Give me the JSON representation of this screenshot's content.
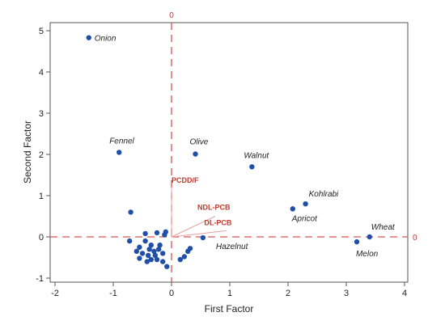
{
  "chart_data": {
    "type": "scatter",
    "title": "",
    "xlabel": "First Factor",
    "ylabel": "Second Factor",
    "xlim": [
      -2.1,
      4.1
    ],
    "ylim": [
      -1.1,
      5.2
    ],
    "xticks": [
      "-2",
      "-1",
      "0",
      "1",
      "2",
      "3",
      "4"
    ],
    "yticks": [
      "-1",
      "0",
      "1",
      "2",
      "3",
      "4",
      "5"
    ],
    "reference_line_label": "0",
    "grid": false,
    "colors": {
      "points": "#1f4fa8",
      "reference": "#d9534f",
      "vectors": "#e8a0a0",
      "vector_labels": "#c0392b"
    },
    "labeled_points": [
      {
        "name": "Onion",
        "x": -1.42,
        "y": 4.83
      },
      {
        "name": "Fennel",
        "x": -0.9,
        "y": 2.05
      },
      {
        "name": "Olive",
        "x": 0.41,
        "y": 2.01
      },
      {
        "name": "Walnut",
        "x": 1.38,
        "y": 1.7
      },
      {
        "name": "Kohlrabi",
        "x": 2.3,
        "y": 0.8
      },
      {
        "name": "Apricot",
        "x": 2.08,
        "y": 0.68
      },
      {
        "name": "Wheat",
        "x": 3.4,
        "y": 0.0
      },
      {
        "name": "Melon",
        "x": 3.18,
        "y": -0.12
      },
      {
        "name": "Hazelnut",
        "x": 0.54,
        "y": -0.02
      }
    ],
    "unlabeled_points": [
      [
        -0.7,
        0.6
      ],
      [
        -0.72,
        -0.1
      ],
      [
        -0.45,
        0.08
      ],
      [
        -0.25,
        0.1
      ],
      [
        -0.12,
        0.05
      ],
      [
        -0.55,
        -0.25
      ],
      [
        -0.45,
        -0.1
      ],
      [
        -0.35,
        -0.2
      ],
      [
        -0.2,
        -0.2
      ],
      [
        -0.3,
        -0.35
      ],
      [
        -0.5,
        -0.4
      ],
      [
        -0.4,
        -0.45
      ],
      [
        -0.28,
        -0.45
      ],
      [
        -0.15,
        -0.4
      ],
      [
        -0.6,
        -0.35
      ],
      [
        -0.35,
        -0.55
      ],
      [
        -0.42,
        -0.6
      ],
      [
        -0.25,
        -0.55
      ],
      [
        -0.15,
        -0.6
      ],
      [
        -0.08,
        -0.72
      ],
      [
        -0.55,
        -0.52
      ],
      [
        -0.38,
        -0.3
      ],
      [
        -0.22,
        -0.3
      ],
      [
        -0.1,
        0.12
      ],
      [
        0.15,
        -0.55
      ],
      [
        0.28,
        -0.35
      ],
      [
        0.22,
        -0.48
      ],
      [
        0.32,
        -0.28
      ]
    ],
    "vectors": [
      {
        "name": "PCDD/F",
        "x": 0.0,
        "y": 1.2
      },
      {
        "name": "NDL-PCB",
        "x": 0.75,
        "y": 0.5
      },
      {
        "name": "DL-PCB",
        "x": 0.95,
        "y": 0.15
      }
    ]
  }
}
